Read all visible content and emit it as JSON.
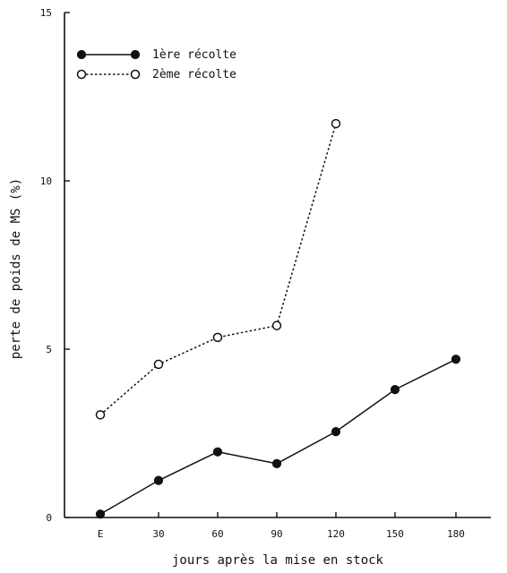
{
  "chart_data": {
    "type": "line",
    "title": "",
    "xlabel": "jours après la mise en stock",
    "ylabel": "perte de poids de MS (%)",
    "categories": [
      "E",
      "30",
      "60",
      "90",
      "120",
      "150",
      "180"
    ],
    "ylim": [
      0,
      15
    ],
    "yticks": [
      0,
      5,
      10,
      15
    ],
    "grid": false,
    "legend": "top-left",
    "series": [
      {
        "name": "1ère récolte",
        "marker": "filled-circle",
        "line": "solid",
        "values": [
          0.1,
          1.1,
          1.95,
          1.6,
          2.55,
          3.8,
          4.7
        ]
      },
      {
        "name": "2ème récolte",
        "marker": "open-circle",
        "line": "dotted",
        "values": [
          3.05,
          4.55,
          5.35,
          5.7,
          11.7,
          null,
          null
        ]
      }
    ]
  }
}
